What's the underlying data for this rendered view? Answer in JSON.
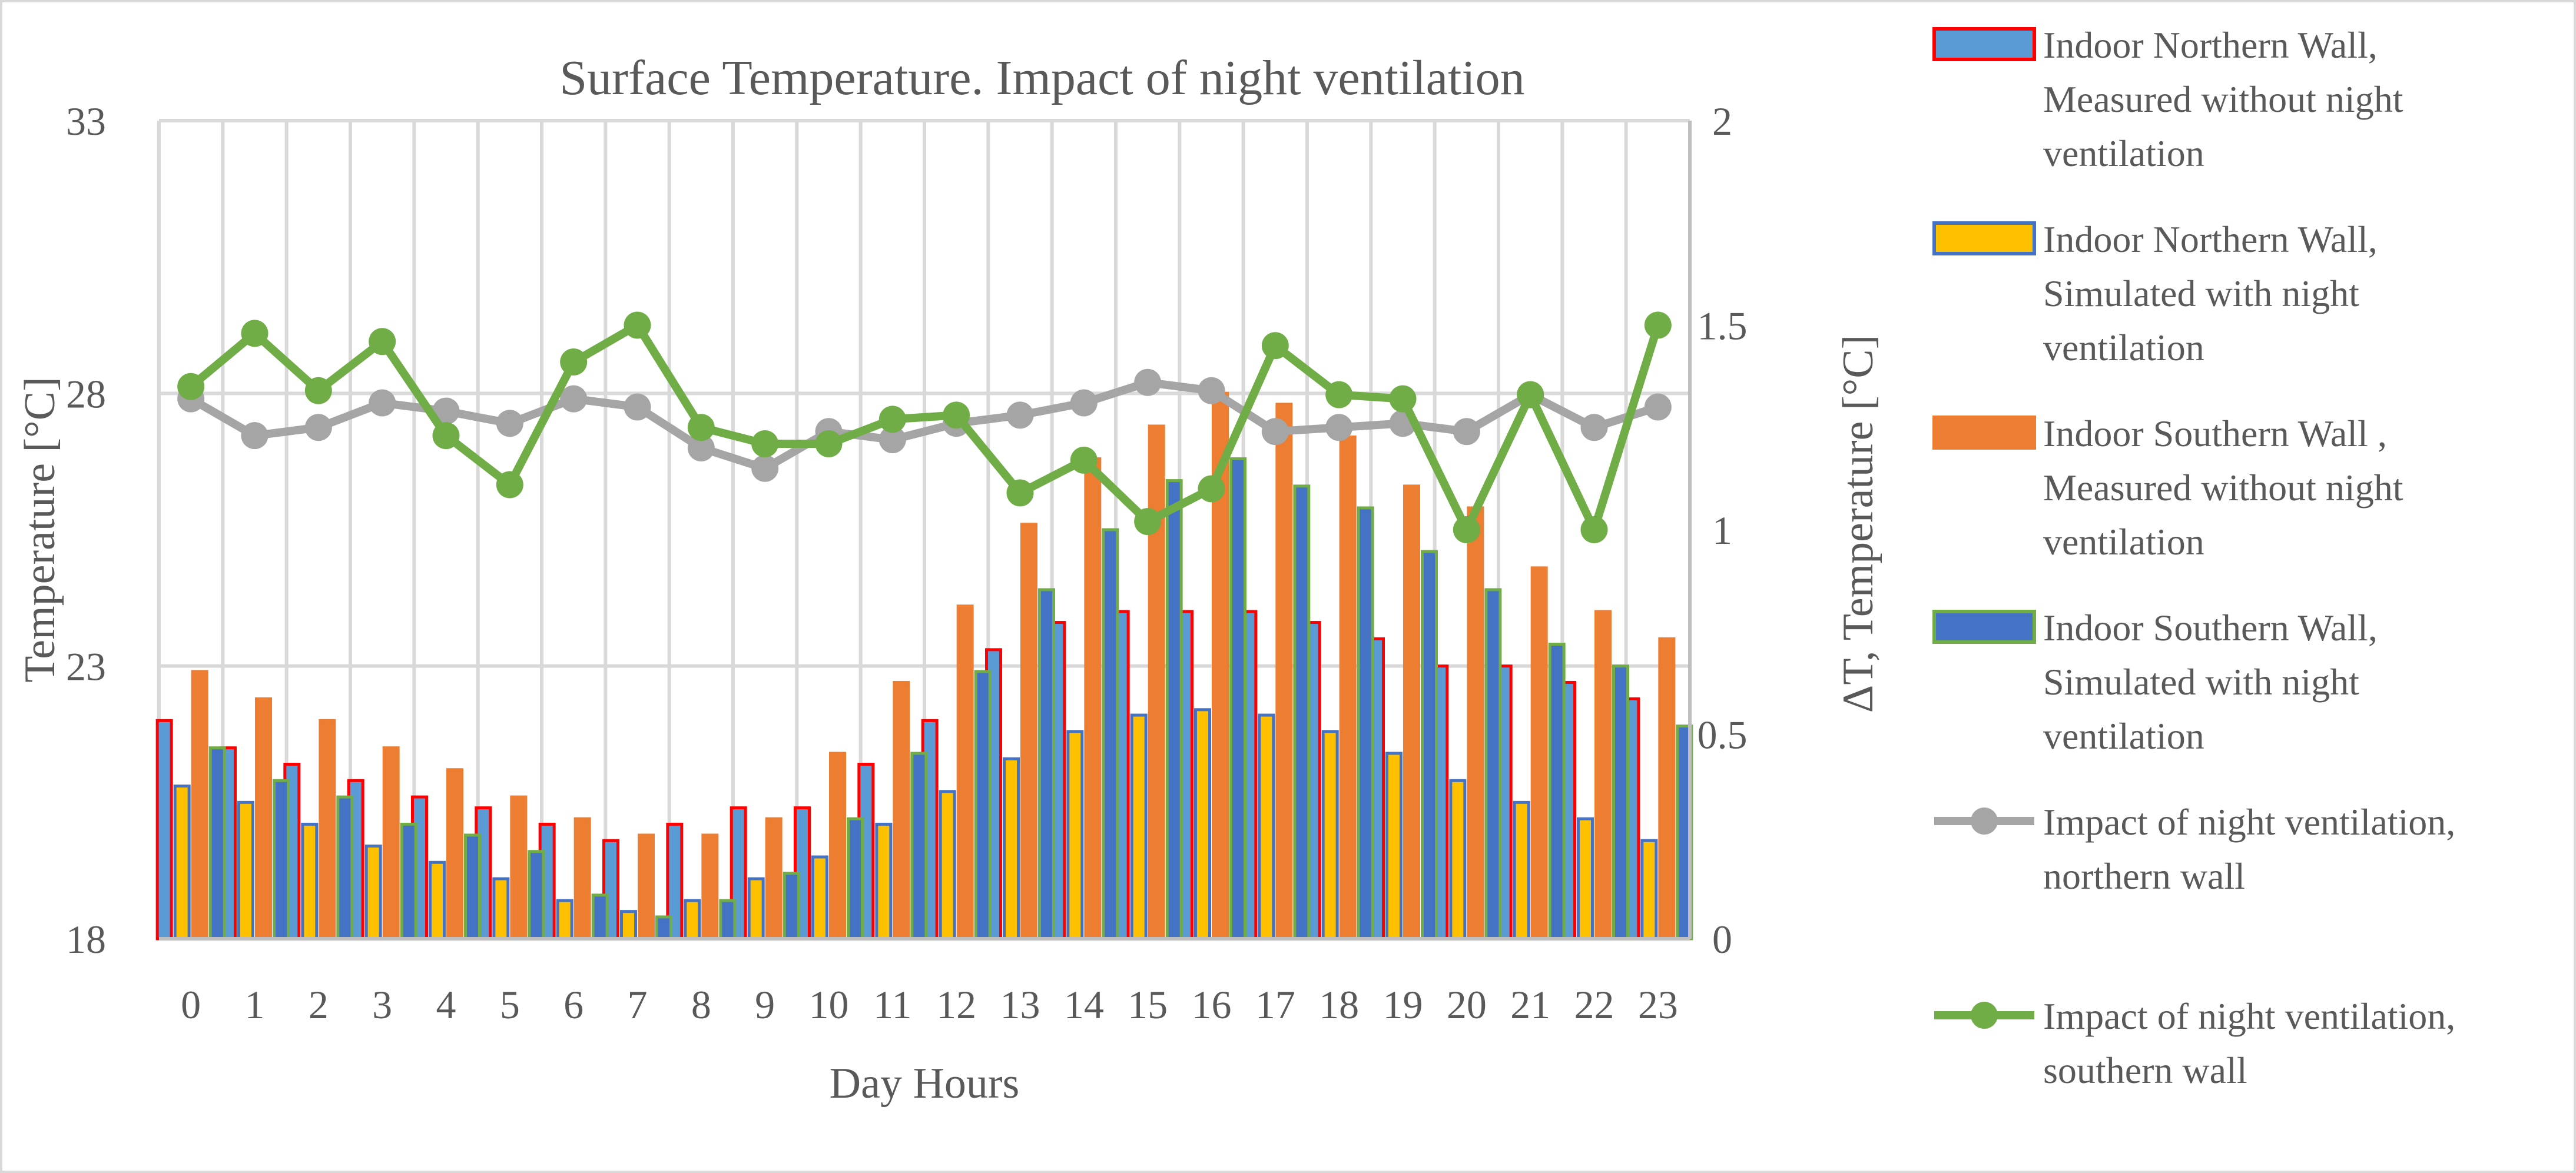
{
  "chart_data": {
    "type": "bar",
    "title": "Surface Temperature. Impact of night ventilation",
    "xlabel": "Day Hours",
    "ylabel": "Temperature [°C]",
    "y2label": "ΔT, Temperature [°C]",
    "ylim": [
      18,
      33
    ],
    "y2lim": [
      0,
      2
    ],
    "yticks": [
      "18",
      "23",
      "28",
      "33"
    ],
    "y2ticks": [
      "0",
      "0.5",
      "1",
      "1.5",
      "2"
    ],
    "grid": true,
    "legend_position": "right",
    "categories": [
      "0",
      "1",
      "2",
      "3",
      "4",
      "5",
      "6",
      "7",
      "8",
      "9",
      "10",
      "11",
      "12",
      "13",
      "14",
      "15",
      "16",
      "17",
      "18",
      "19",
      "20",
      "21",
      "22",
      "23"
    ],
    "series": [
      {
        "name": "Indoor Northern Wall, Measured without night ventilation",
        "kind": "bar",
        "axis": "left",
        "fill": "#5b9bd5",
        "stroke": "#ff0000",
        "values": [
          22.0,
          21.5,
          21.2,
          20.9,
          20.6,
          20.4,
          20.1,
          19.8,
          20.1,
          20.4,
          20.4,
          21.2,
          22.0,
          23.3,
          23.8,
          24.0,
          24.0,
          24.0,
          23.8,
          23.5,
          23.0,
          23.0,
          22.7,
          22.4
        ]
      },
      {
        "name": "Indoor Northern Wall, Simulated with night ventilation",
        "kind": "bar",
        "axis": "left",
        "fill": "#ffc000",
        "stroke": "#4472c4",
        "values": [
          20.8,
          20.5,
          20.1,
          19.7,
          19.4,
          19.1,
          18.7,
          18.5,
          18.7,
          19.1,
          19.5,
          20.1,
          20.7,
          21.3,
          21.8,
          22.1,
          22.2,
          22.1,
          21.8,
          21.4,
          20.9,
          20.5,
          20.2,
          19.8
        ]
      },
      {
        "name": "Indoor Southern Wall , Measured without night ventilation",
        "kind": "bar",
        "axis": "left",
        "fill": "#ed7d31",
        "stroke": "#ed7d31",
        "values": [
          22.9,
          22.4,
          22.0,
          21.5,
          21.1,
          20.6,
          20.2,
          19.9,
          19.9,
          20.2,
          21.4,
          22.7,
          24.1,
          25.6,
          26.8,
          27.4,
          28.0,
          27.8,
          27.2,
          26.3,
          25.9,
          24.8,
          24.0,
          23.5
        ]
      },
      {
        "name": "Indoor Southern Wall, Simulated with night ventilation",
        "kind": "bar",
        "axis": "left",
        "fill": "#4472c4",
        "stroke": "#70ad47",
        "values": [
          21.5,
          20.9,
          20.6,
          20.1,
          19.9,
          19.6,
          18.8,
          18.4,
          18.7,
          19.2,
          20.2,
          21.4,
          22.9,
          24.4,
          25.5,
          26.4,
          26.8,
          26.3,
          25.9,
          25.1,
          24.4,
          23.4,
          23.0,
          21.9
        ]
      },
      {
        "name": "Impact of night ventilation, northern wall",
        "kind": "line",
        "axis": "right",
        "color": "#a5a5a5",
        "values": [
          1.32,
          1.23,
          1.25,
          1.31,
          1.29,
          1.26,
          1.32,
          1.3,
          1.2,
          1.15,
          1.24,
          1.22,
          1.26,
          1.28,
          1.31,
          1.36,
          1.34,
          1.24,
          1.25,
          1.26,
          1.24,
          1.33,
          1.25,
          1.3
        ]
      },
      {
        "name": "Impact of night ventilation, southern wall",
        "kind": "line",
        "axis": "right",
        "color": "#70ad47",
        "values": [
          1.35,
          1.48,
          1.34,
          1.46,
          1.23,
          1.11,
          1.41,
          1.5,
          1.25,
          1.21,
          1.21,
          1.27,
          1.28,
          1.09,
          1.17,
          1.02,
          1.1,
          1.45,
          1.33,
          1.32,
          1.0,
          1.33,
          1.0,
          1.5
        ]
      }
    ],
    "legend": [
      [
        "Indoor Northern Wall,",
        "Measured without night",
        "ventilation"
      ],
      [
        "Indoor Northern Wall,",
        "Simulated with night",
        "ventilation"
      ],
      [
        "Indoor Southern Wall ,",
        "Measured without night",
        "ventilation"
      ],
      [
        "Indoor Southern Wall,",
        "Simulated with night",
        "ventilation"
      ],
      [
        "Impact of night ventilation,",
        "northern wall"
      ],
      [
        "Impact of night ventilation,",
        "southern wall"
      ]
    ]
  }
}
